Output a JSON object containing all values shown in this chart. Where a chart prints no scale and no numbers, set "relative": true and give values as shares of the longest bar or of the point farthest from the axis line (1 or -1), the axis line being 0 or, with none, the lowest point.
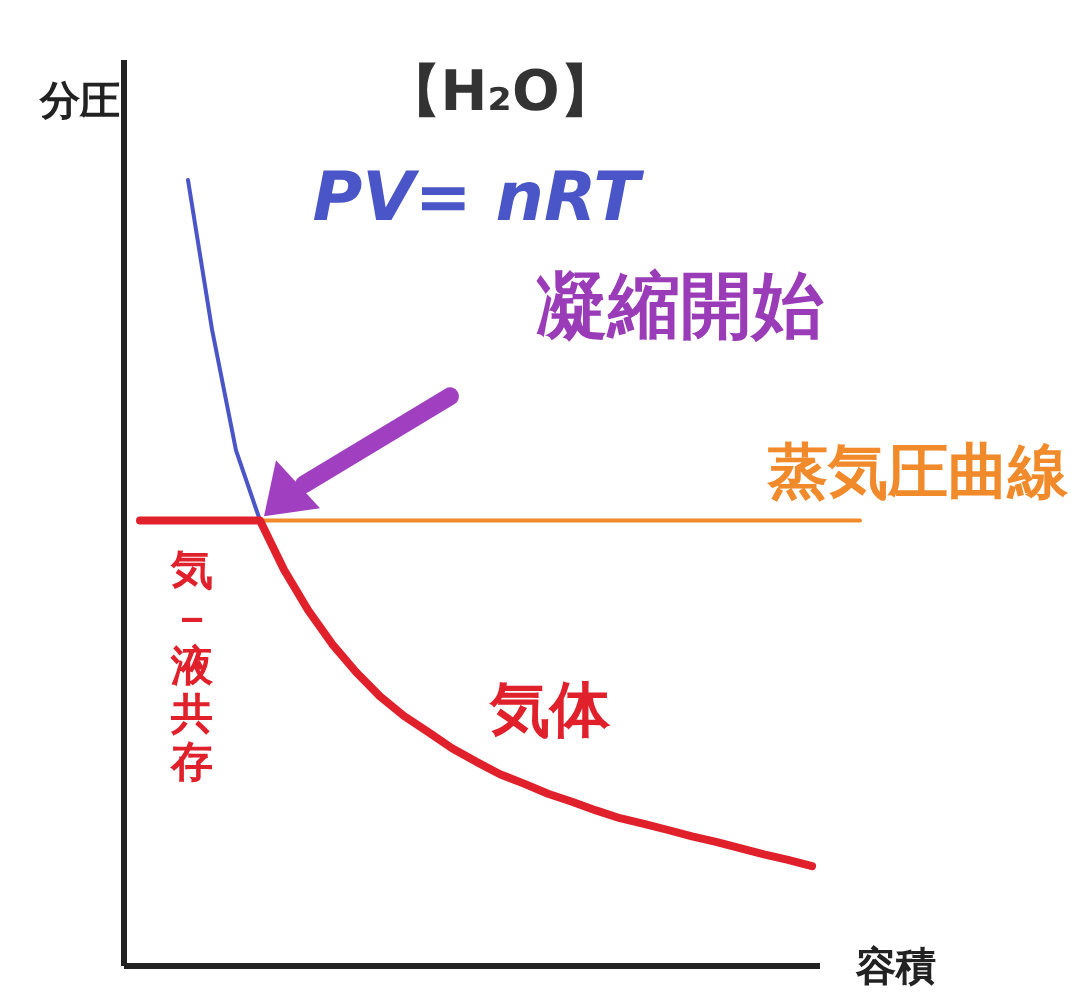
{
  "chart_data": {
    "type": "line",
    "relative": true,
    "title": "【H₂O】",
    "xlabel": "容積",
    "ylabel": "分圧",
    "legend": false,
    "grid": false,
    "marker": "none",
    "line_style": "solid",
    "categories": [
      null,
      null,
      null,
      null,
      null,
      null,
      null,
      null,
      null,
      null,
      null,
      null,
      null,
      null,
      null,
      null,
      null,
      null,
      null,
      null,
      null,
      null,
      null,
      null,
      null,
      null,
      null,
      null,
      null,
      null,
      null
    ],
    "series": [
      {
        "name": "PV= nRT",
        "color": "#4a55c8",
        "values": [
          null,
          null,
          1,
          0.81,
          0.656,
          0.567,
          null,
          null,
          null,
          null,
          null,
          null,
          null,
          null,
          null,
          null,
          null,
          null,
          null,
          null,
          null,
          null,
          null,
          null,
          null,
          null,
          null,
          null,
          null,
          null,
          null
        ]
      },
      {
        "name": "蒸気圧曲線",
        "color": "#f08a2a",
        "values": [
          null,
          null,
          null,
          null,
          null,
          0.567,
          0.567,
          0.567,
          0.567,
          0.567,
          0.567,
          0.567,
          0.567,
          0.567,
          0.567,
          0.567,
          0.567,
          0.567,
          0.567,
          0.567,
          0.567,
          0.567,
          0.567,
          0.567,
          0.567,
          0.567,
          0.567,
          0.567,
          0.567,
          0.567,
          0.567
        ]
      },
      {
        "color": "#e0202a",
        "values": [
          0.567,
          0.567,
          0.567,
          0.567,
          0.567,
          0.567,
          0.504,
          0.453,
          0.41,
          0.374,
          0.343,
          0.318,
          0.298,
          0.277,
          0.26,
          0.244,
          0.232,
          0.219,
          0.209,
          0.198,
          0.188,
          0.181,
          0.173,
          0.165,
          0.158,
          0.15,
          0.142,
          0.135,
          0.127,
          null,
          null
        ]
      }
    ],
    "annotations": [
      "凝縮開始",
      "気体",
      "気－液共存"
    ]
  }
}
